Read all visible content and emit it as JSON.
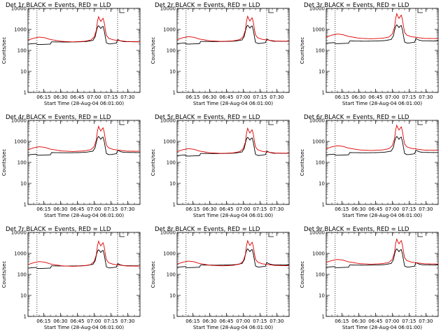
{
  "chart_data": {
    "type": "line",
    "shared": {
      "ylabel": "Counts/sec",
      "xlabel": "Start Time (28-Aug-04 06:01:00)",
      "yscale": "log",
      "ylim": [
        1,
        10000
      ],
      "y_ticks": [
        1,
        10,
        100,
        1000,
        10000
      ],
      "y_tick_labels": [
        "1",
        "10",
        "100",
        "1000",
        "10000"
      ],
      "x_range_min": [
        0,
        100
      ],
      "x_ticks_min": [
        14,
        29,
        44,
        59,
        74,
        89
      ],
      "x_tick_labels": [
        "06:15",
        "06:30",
        "06:45",
        "07:00",
        "07:15",
        "07:30"
      ],
      "vlines_min": [
        8,
        80
      ],
      "legend_marker": "step",
      "series_names": [
        "Events",
        "LLD"
      ],
      "series_colors": [
        "#000000",
        "#dd0000"
      ],
      "events_key": [
        [
          0,
          200
        ],
        [
          7,
          215
        ],
        [
          8,
          195
        ],
        [
          10,
          190
        ],
        [
          20,
          200
        ],
        [
          21,
          255
        ],
        [
          35,
          250
        ],
        [
          45,
          255
        ],
        [
          52,
          265
        ],
        [
          58,
          300
        ],
        [
          60,
          450
        ],
        [
          61,
          800
        ],
        [
          62,
          1250
        ],
        [
          63,
          1500
        ],
        [
          64,
          1300
        ],
        [
          65,
          1100
        ],
        [
          66,
          1300
        ],
        [
          67,
          1400
        ],
        [
          68,
          900
        ],
        [
          69,
          450
        ],
        [
          70,
          230
        ],
        [
          72,
          205
        ],
        [
          74,
          205
        ],
        [
          79,
          225
        ],
        [
          80,
          330
        ],
        [
          83,
          280
        ],
        [
          86,
          260
        ],
        [
          90,
          260
        ],
        [
          100,
          255
        ]
      ],
      "lld_key": [
        [
          0,
          310
        ],
        [
          5,
          380
        ],
        [
          10,
          430
        ],
        [
          15,
          400
        ],
        [
          20,
          330
        ],
        [
          30,
          270
        ],
        [
          40,
          255
        ],
        [
          50,
          270
        ],
        [
          56,
          310
        ],
        [
          59,
          430
        ],
        [
          61,
          900
        ],
        [
          62,
          2400
        ],
        [
          63,
          4000
        ],
        [
          64,
          3000
        ],
        [
          65,
          2400
        ],
        [
          66,
          2900
        ],
        [
          67,
          3400
        ],
        [
          68,
          2200
        ],
        [
          69,
          1000
        ],
        [
          70,
          520
        ],
        [
          72,
          380
        ],
        [
          76,
          320
        ],
        [
          80,
          300
        ],
        [
          88,
          265
        ],
        [
          100,
          260
        ]
      ]
    },
    "panels": [
      {
        "title": "Det 1r BLACK = Events, RED = LLD",
        "events_scale": 1.0,
        "lld_scale": 1.0
      },
      {
        "title": "Det 2r BLACK = Events, RED = LLD",
        "events_scale": 1.05,
        "lld_scale": 1.05
      },
      {
        "title": "Det 3r BLACK = Events, RED = LLD",
        "events_scale": 1.1,
        "lld_scale": 1.4
      },
      {
        "title": "Det 4r BLACK = Events, RED = LLD",
        "events_scale": 1.15,
        "lld_scale": 1.3
      },
      {
        "title": "Det 5r BLACK = Events, RED = LLD",
        "events_scale": 1.05,
        "lld_scale": 1.05
      },
      {
        "title": "Det 6r BLACK = Events, RED = LLD",
        "events_scale": 1.15,
        "lld_scale": 1.45
      },
      {
        "title": "Det 7r BLACK = Events, RED = LLD",
        "events_scale": 1.0,
        "lld_scale": 0.95
      },
      {
        "title": "Det 8r BLACK = Events, RED = LLD",
        "events_scale": 1.1,
        "lld_scale": 1.0
      },
      {
        "title": "Det 9r BLACK = Events, RED = LLD",
        "events_scale": 1.1,
        "lld_scale": 1.2
      }
    ]
  }
}
